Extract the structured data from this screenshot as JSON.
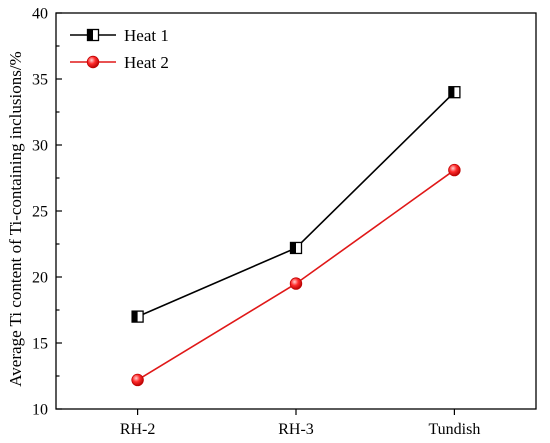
{
  "chart_data": {
    "type": "line",
    "categories": [
      "RH-2",
      "RH-3",
      "Tundish"
    ],
    "ylabel": "Average Ti content of Ti-containing inclusions/%",
    "xlabel": "",
    "ylim": [
      10,
      40
    ],
    "yticks": [
      10,
      15,
      20,
      25,
      30,
      35,
      40
    ],
    "legend_position": "top-left",
    "series": [
      {
        "name": "Heat 1",
        "values": [
          17.0,
          22.2,
          34.0
        ],
        "color": "#000000",
        "marker": "half-filled-square"
      },
      {
        "name": "Heat 2",
        "values": [
          12.2,
          19.5,
          28.1
        ],
        "color": "#e01818",
        "marker": "circle"
      }
    ]
  }
}
